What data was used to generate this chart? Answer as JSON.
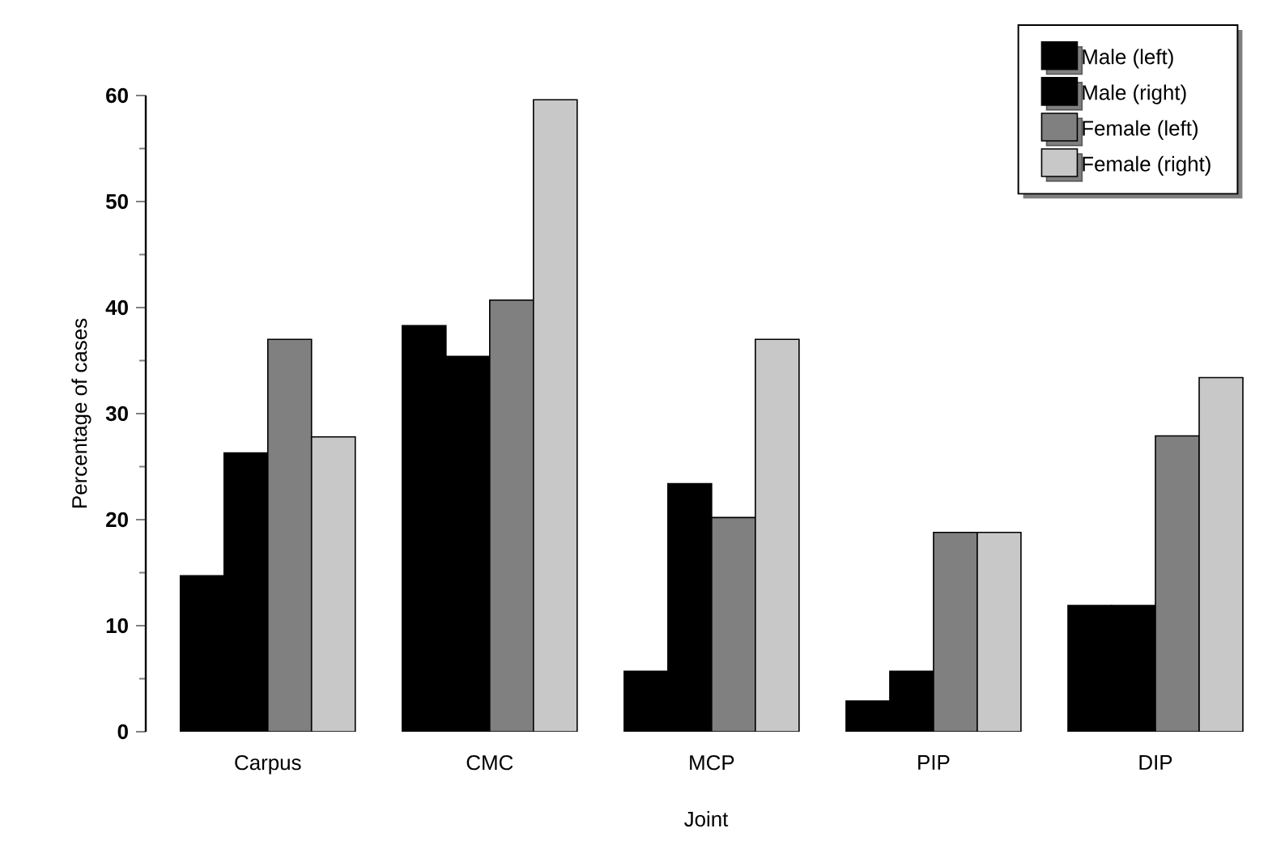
{
  "chart_data": {
    "type": "bar",
    "xlabel": "Joint",
    "ylabel": "Percentage of cases",
    "categories": [
      "Carpus",
      "CMC",
      "MCP",
      "PIP",
      "DIP"
    ],
    "series": [
      {
        "name": "Male (left)",
        "color": "#000000",
        "values": [
          14.7,
          38.3,
          5.7,
          2.9,
          11.9
        ]
      },
      {
        "name": "Male (right)",
        "color": "#000000",
        "values": [
          26.3,
          35.4,
          23.4,
          5.7,
          11.9
        ]
      },
      {
        "name": "Female (left)",
        "color": "#808080",
        "values": [
          37.0,
          40.7,
          20.2,
          18.8,
          27.9
        ]
      },
      {
        "name": "Female (right)",
        "color": "#c8c8c8",
        "values": [
          27.8,
          59.6,
          37.0,
          18.8,
          33.4
        ]
      }
    ],
    "ylim": [
      0,
      60
    ],
    "yticks": [
      0,
      10,
      20,
      30,
      40,
      50,
      60
    ],
    "legend": "top right"
  }
}
